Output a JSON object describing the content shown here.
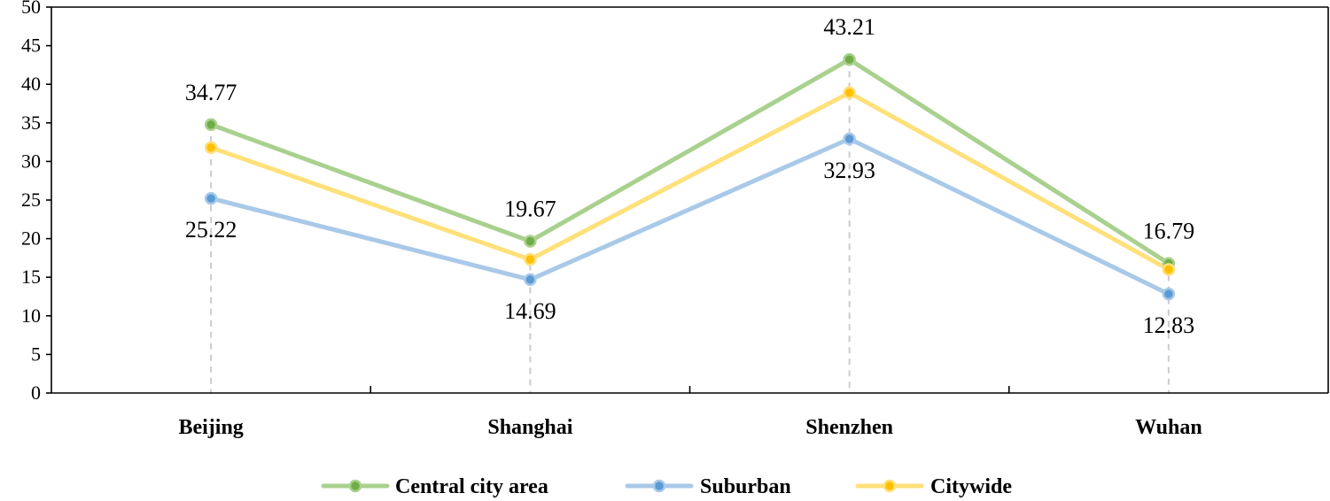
{
  "chart_data": {
    "type": "line",
    "title": "",
    "xlabel": "",
    "ylabel": "",
    "categories": [
      "Beijing",
      "Shanghai",
      "Shenzhen",
      "Wuhan"
    ],
    "ylim": [
      0,
      50
    ],
    "yticks": [
      0,
      5,
      10,
      15,
      20,
      25,
      30,
      35,
      40,
      45,
      50
    ],
    "grid": false,
    "legend_position": "bottom",
    "series": [
      {
        "name": "Central city area",
        "values": [
          34.77,
          19.67,
          43.21,
          16.79
        ],
        "labels": [
          "34.77",
          "19.67",
          "43.21",
          "16.79"
        ],
        "label_side": "above",
        "line_color": "#a9d18e",
        "marker_fill": "#70ad47",
        "marker_stroke": "#a9d18e"
      },
      {
        "name": "Suburban",
        "values": [
          25.22,
          14.69,
          32.93,
          12.83
        ],
        "labels": [
          "25.22",
          "14.69",
          "32.93",
          "12.83"
        ],
        "label_side": "below",
        "line_color": "#a9c9e8",
        "marker_fill": "#5b9bd5",
        "marker_stroke": "#a9c9e8"
      },
      {
        "name": "Citywide",
        "values": [
          31.8,
          17.3,
          38.9,
          16.0
        ],
        "labels": [],
        "label_side": "none",
        "line_color": "#ffe07a",
        "marker_fill": "#ffc000",
        "marker_stroke": "#ffe07a"
      }
    ],
    "drop_line_color": "#cccccc",
    "axis_color": "#000000"
  }
}
